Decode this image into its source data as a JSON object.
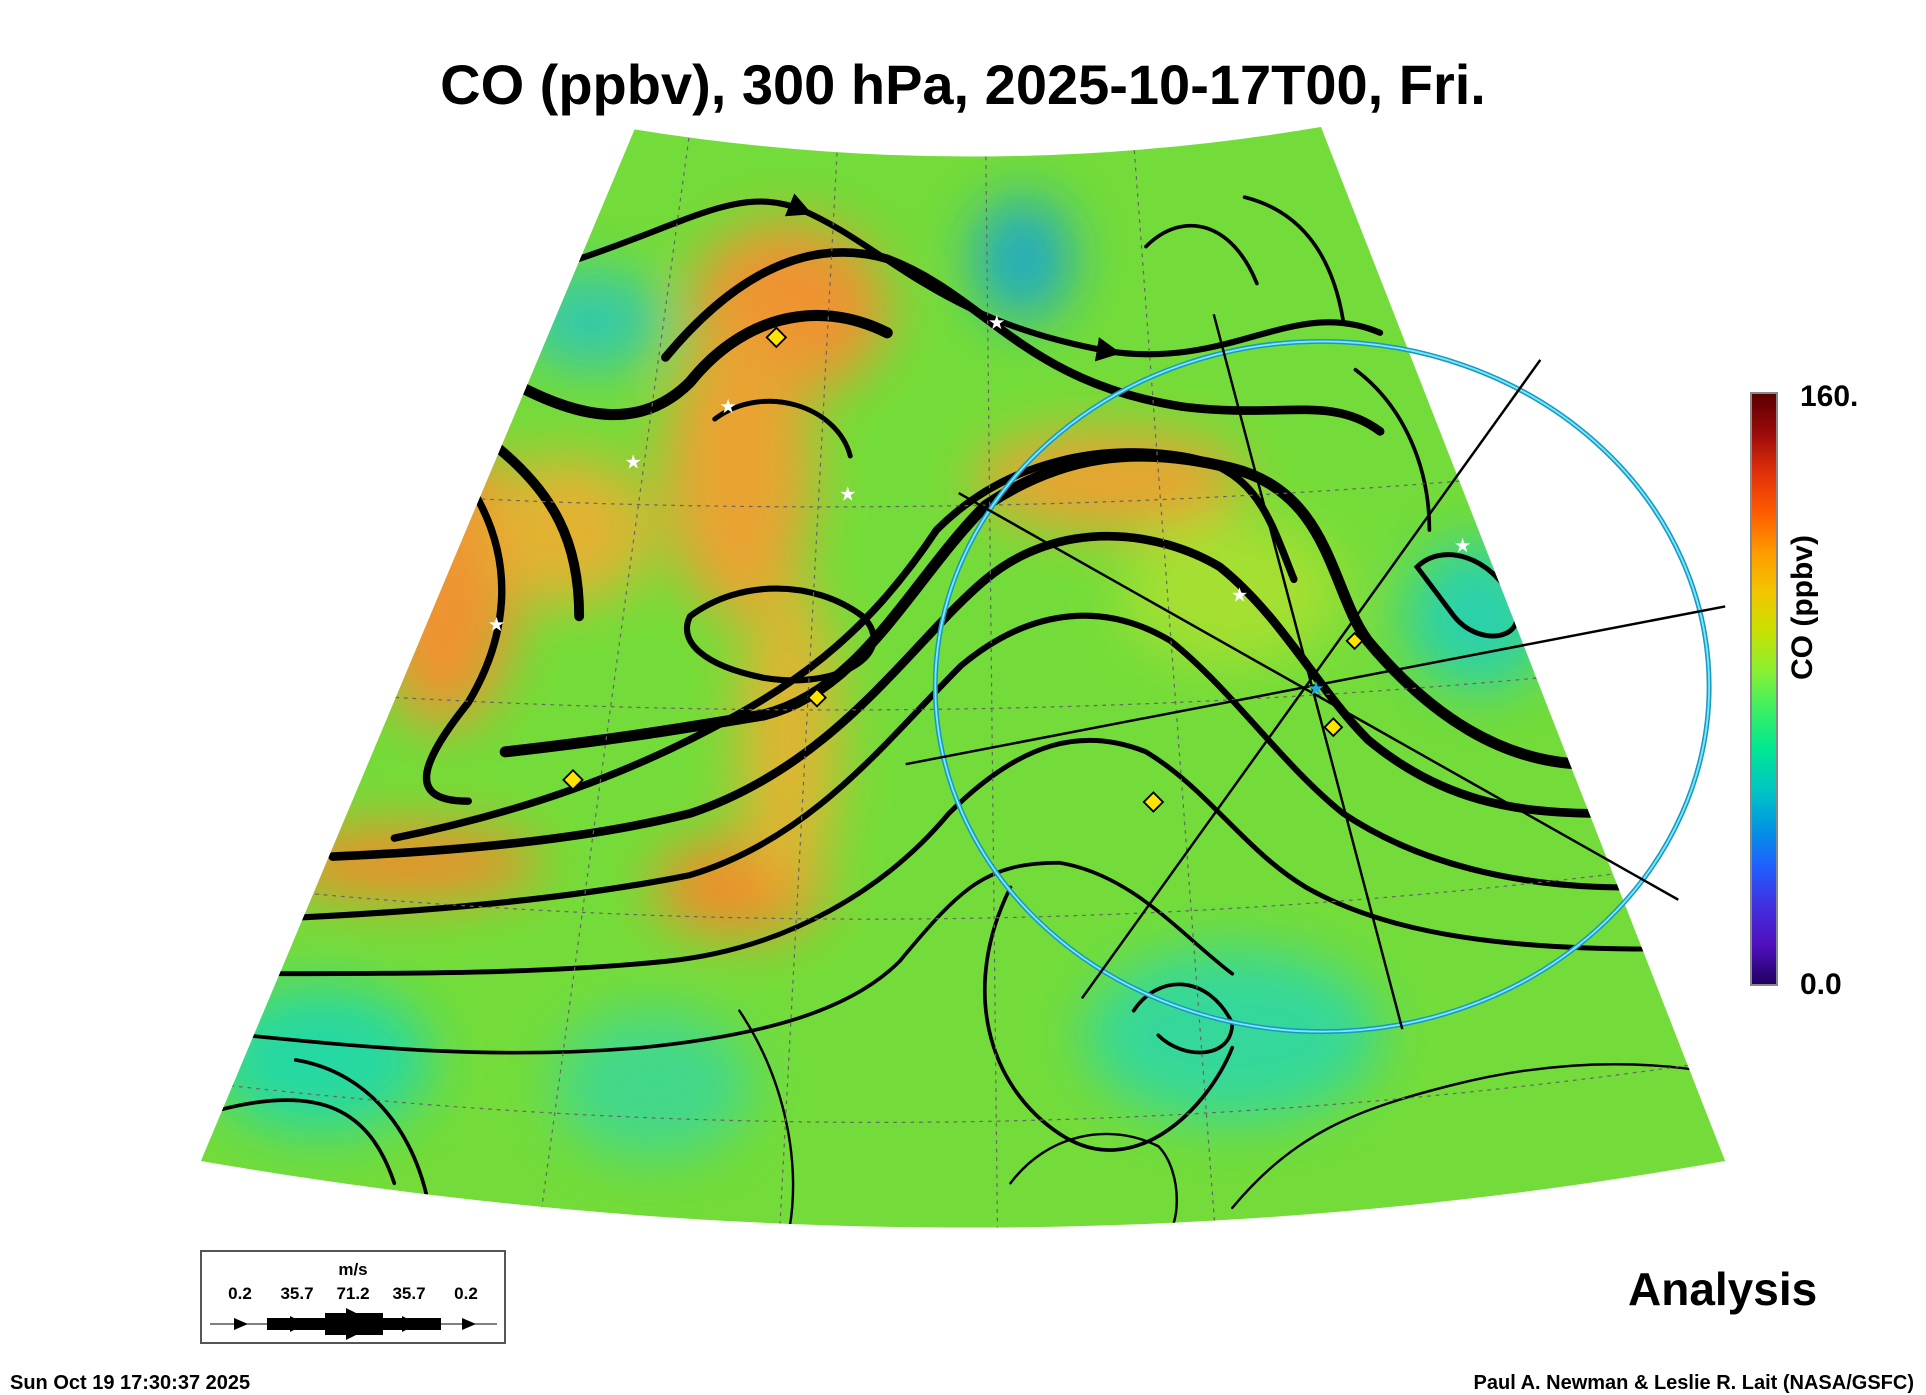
{
  "title": "CO (ppbv), 300 hPa, 2025-10-17T00, Fri.",
  "colorbar": {
    "max_label": "160.",
    "min_label": "0.0",
    "label": "CO (ppbv)",
    "min": 0.0,
    "max": 160
  },
  "legend": {
    "unit": "m/s",
    "values": [
      "0.2",
      "35.7",
      "71.2",
      "35.7",
      "0.2"
    ]
  },
  "product_label": "Analysis",
  "footer": {
    "timestamp": "Sun Oct 19 17:30:37 2025",
    "credit": "Paul A. Newman & Leslie R. Lait (NASA/GSFC)"
  },
  "colors": {
    "field_base": "#6fdc3c",
    "high_co": "#f58a2a",
    "low_co": "#18d9a0",
    "circle": "#22c8e8"
  }
}
